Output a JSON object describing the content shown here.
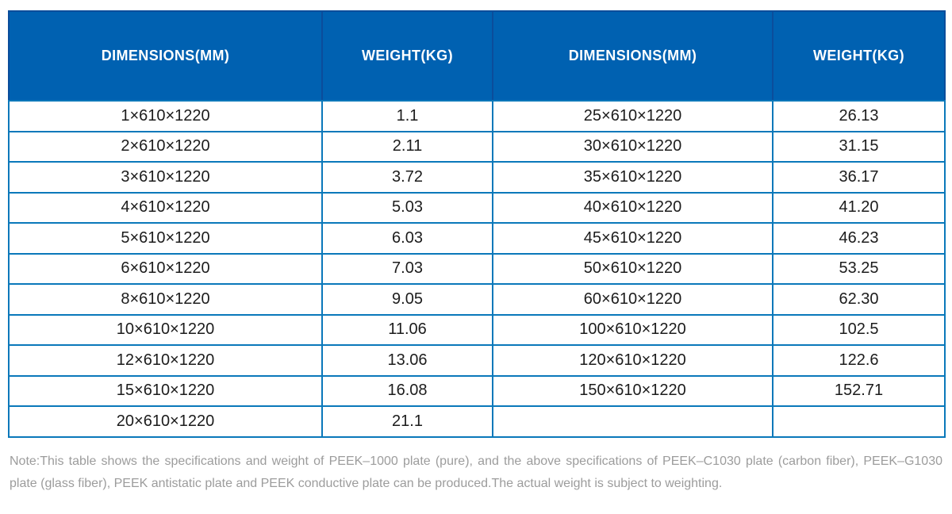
{
  "table": {
    "columns": [
      "DIMENSIONS(MM)",
      "WEIGHT(KG)",
      "DIMENSIONS(MM)",
      "WEIGHT(KG)"
    ],
    "rows": [
      [
        "1×610×1220",
        "1.1",
        "25×610×1220",
        "26.13"
      ],
      [
        "2×610×1220",
        "2.11",
        "30×610×1220",
        "31.15"
      ],
      [
        "3×610×1220",
        "3.72",
        "35×610×1220",
        "36.17"
      ],
      [
        "4×610×1220",
        "5.03",
        "40×610×1220",
        "41.20"
      ],
      [
        "5×610×1220",
        "6.03",
        "45×610×1220",
        "46.23"
      ],
      [
        "6×610×1220",
        "7.03",
        "50×610×1220",
        "53.25"
      ],
      [
        "8×610×1220",
        "9.05",
        "60×610×1220",
        "62.30"
      ],
      [
        "10×610×1220",
        "11.06",
        "100×610×1220",
        "102.5"
      ],
      [
        "12×610×1220",
        "13.06",
        "120×610×1220",
        "122.6"
      ],
      [
        "15×610×1220",
        "16.08",
        "150×610×1220",
        "152.71"
      ],
      [
        "20×610×1220",
        "21.1",
        "",
        ""
      ]
    ]
  },
  "note": "Note:This table shows the specifications and weight of PEEK–1000 plate (pure), and the above specifications of PEEK–C1030 plate (carbon fiber), PEEK–G1030 plate (glass fiber), PEEK antistatic plate and PEEK conductive plate can be produced.The actual weight is subject to weighting.",
  "colors": {
    "header_bg": "#0061B1",
    "header_divider": "#0B4D9B",
    "grid_line": "#0A78BA",
    "header_text": "#FFFFFF",
    "cell_text": "#1C1C1C",
    "note_text": "#9C9C9C",
    "background": "#FFFFFF"
  }
}
